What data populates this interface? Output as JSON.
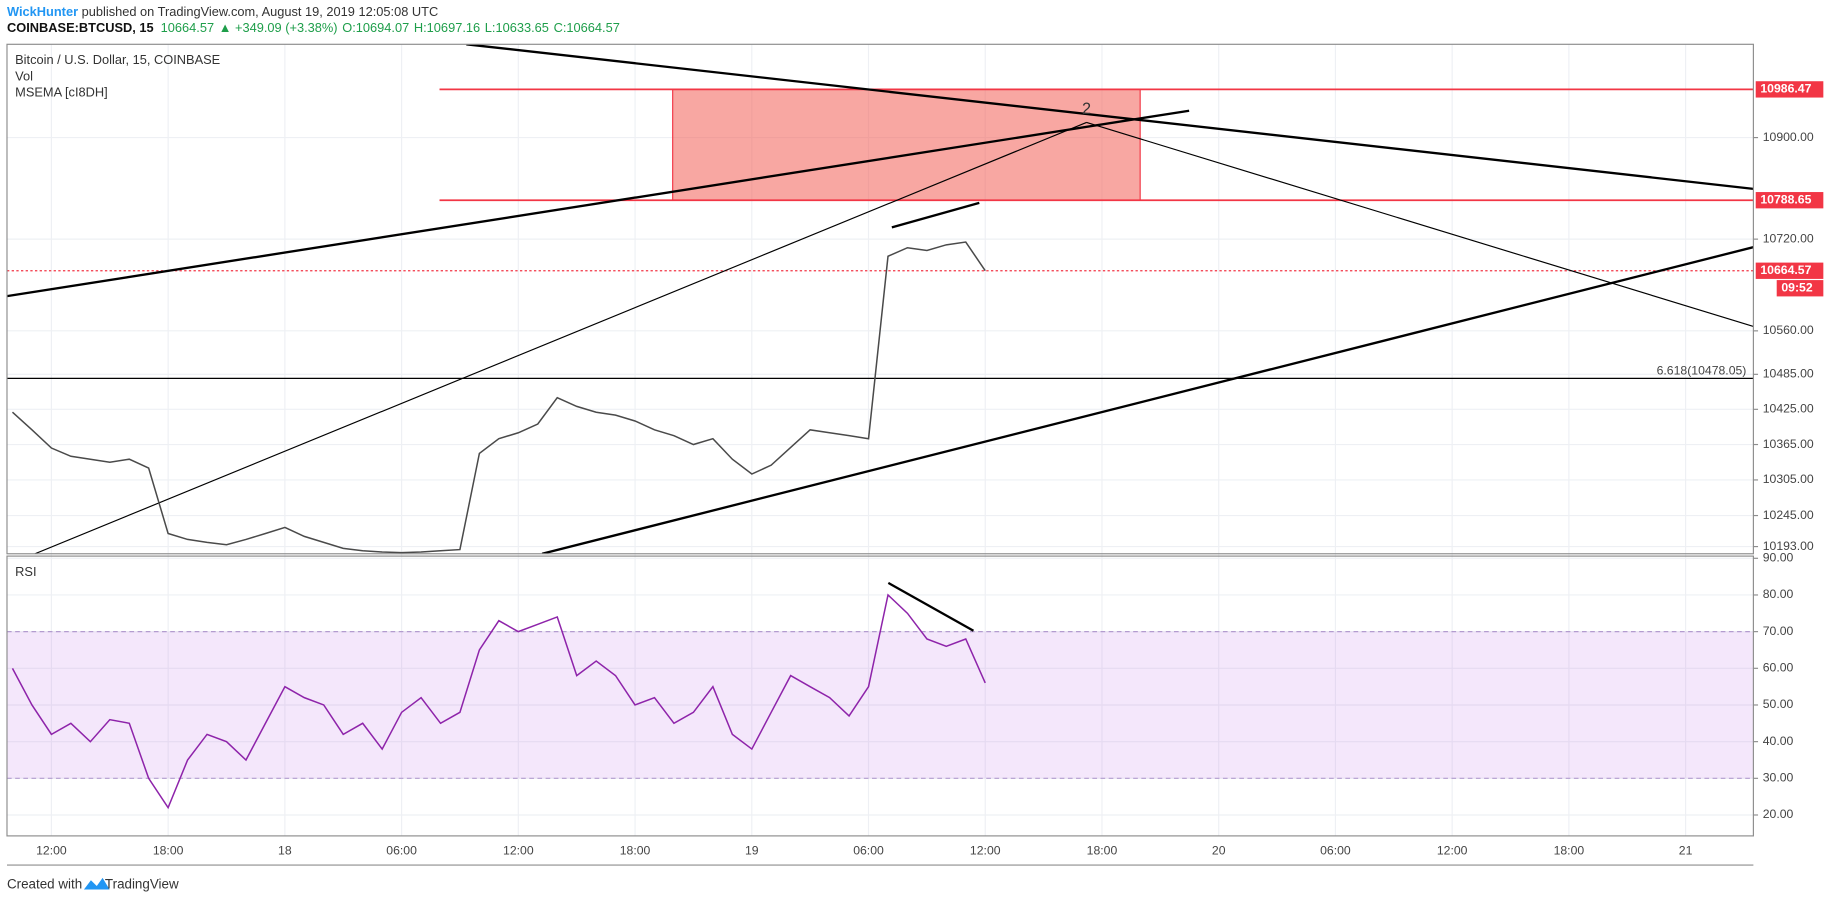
{
  "header": {
    "author": "WickHunter",
    "published": " published on TradingView.com, August 19, 2019 12:05:08 UTC",
    "symbol": "COINBASE:BTCUSD, 15",
    "last": "10664.57",
    "change": "▲ +349.09 (+3.38%)",
    "open": "O:10694.07",
    "high": "H:10697.16",
    "low": "L:10633.65",
    "close": "C:10664.57"
  },
  "chart_data": [
    {
      "type": "line",
      "title": "Bitcoin / U.S. Dollar, 15, COINBASE",
      "indicators": [
        "Vol",
        "MSEMA [cI8DH]"
      ],
      "log": true,
      "grid": true,
      "color": "#4a4a4a",
      "xlim": [
        "2019-08-17T09:43",
        "2019-08-21T03:29"
      ],
      "ylim": [
        10181,
        11068
      ],
      "yticks": [
        {
          "value": 10193,
          "label": "10193.00"
        },
        {
          "value": 10245,
          "label": "10245.00"
        },
        {
          "value": 10305,
          "label": "10305.00"
        },
        {
          "value": 10365,
          "label": "10365.00"
        },
        {
          "value": 10425,
          "label": "10425.00"
        },
        {
          "value": 10485,
          "label": "10485.00"
        },
        {
          "value": 10560,
          "label": "10560.00"
        },
        {
          "value": 10720,
          "label": "10720.00"
        },
        {
          "value": 10900,
          "label": "10900.00"
        }
      ],
      "x": [
        "2019-08-17T10:00",
        "2019-08-17T11:00",
        "2019-08-17T12:00",
        "2019-08-17T13:00",
        "2019-08-17T14:00",
        "2019-08-17T15:00",
        "2019-08-17T16:00",
        "2019-08-17T17:00",
        "2019-08-17T18:00",
        "2019-08-17T19:00",
        "2019-08-17T20:00",
        "2019-08-17T21:00",
        "2019-08-17T22:00",
        "2019-08-17T23:00",
        "2019-08-18T00:00",
        "2019-08-18T01:00",
        "2019-08-18T02:00",
        "2019-08-18T03:00",
        "2019-08-18T04:00",
        "2019-08-18T05:00",
        "2019-08-18T06:00",
        "2019-08-18T07:00",
        "2019-08-18T08:00",
        "2019-08-18T09:00",
        "2019-08-18T10:00",
        "2019-08-18T11:00",
        "2019-08-18T12:00",
        "2019-08-18T13:00",
        "2019-08-18T14:00",
        "2019-08-18T15:00",
        "2019-08-18T16:00",
        "2019-08-18T17:00",
        "2019-08-18T18:00",
        "2019-08-18T19:00",
        "2019-08-18T20:00",
        "2019-08-18T21:00",
        "2019-08-18T22:00",
        "2019-08-18T23:00",
        "2019-08-19T00:00",
        "2019-08-19T01:00",
        "2019-08-19T02:00",
        "2019-08-19T03:00",
        "2019-08-19T04:00",
        "2019-08-19T05:00",
        "2019-08-19T06:00",
        "2019-08-19T07:00",
        "2019-08-19T08:00",
        "2019-08-19T09:00",
        "2019-08-19T10:00",
        "2019-08-19T11:00",
        "2019-08-19T12:00"
      ],
      "values": [
        10420,
        10390,
        10359,
        10345,
        10340,
        10335,
        10340,
        10325,
        10215,
        10205,
        10200,
        10196,
        10205,
        10215,
        10225,
        10210,
        10200,
        10190,
        10186,
        10184,
        10183,
        10184,
        10186,
        10188,
        10350,
        10375,
        10385,
        10400,
        10445,
        10430,
        10420,
        10415,
        10405,
        10390,
        10380,
        10365,
        10375,
        10340,
        10315,
        10330,
        10360,
        10390,
        10385,
        10380,
        10375,
        10690,
        10705,
        10700,
        10710,
        10715,
        10664.57
      ],
      "levels": [
        {
          "value": 10986.47,
          "label": "10986.47"
        },
        {
          "value": 10788.65,
          "label": "10788.65"
        },
        {
          "value": 10664.57,
          "label": "10664.57",
          "dashed": true
        }
      ],
      "countdown": "09:52",
      "fib": {
        "value": 10478.05,
        "label": "6.618(10478.05)"
      },
      "annotation": "2"
    },
    {
      "type": "line",
      "title": "RSI",
      "grid": true,
      "color": "#8e24aa",
      "band": [
        30,
        70
      ],
      "xlim": [
        "2019-08-17T09:43",
        "2019-08-21T03:29"
      ],
      "ylim": [
        14.3,
        90.6
      ],
      "yticks": [
        {
          "value": 20,
          "label": "20.00"
        },
        {
          "value": 30,
          "label": "30.00"
        },
        {
          "value": 40,
          "label": "40.00"
        },
        {
          "value": 50,
          "label": "50.00"
        },
        {
          "value": 60,
          "label": "60.00"
        },
        {
          "value": 70,
          "label": "70.00"
        },
        {
          "value": 80,
          "label": "80.00"
        },
        {
          "value": 90,
          "label": "90.00"
        }
      ],
      "xticks": [
        {
          "value": "2019-08-17T12:00",
          "label": "12:00"
        },
        {
          "value": "2019-08-17T18:00",
          "label": "18:00"
        },
        {
          "value": "2019-08-18T00:00",
          "label": "18"
        },
        {
          "value": "2019-08-18T06:00",
          "label": "06:00"
        },
        {
          "value": "2019-08-18T12:00",
          "label": "12:00"
        },
        {
          "value": "2019-08-18T18:00",
          "label": "18:00"
        },
        {
          "value": "2019-08-19T00:00",
          "label": "19"
        },
        {
          "value": "2019-08-19T06:00",
          "label": "06:00"
        },
        {
          "value": "2019-08-19T12:00",
          "label": "12:00"
        },
        {
          "value": "2019-08-19T18:00",
          "label": "18:00"
        },
        {
          "value": "2019-08-20T00:00",
          "label": "20"
        },
        {
          "value": "2019-08-20T06:00",
          "label": "06:00"
        },
        {
          "value": "2019-08-20T12:00",
          "label": "12:00"
        },
        {
          "value": "2019-08-20T18:00",
          "label": "18:00"
        },
        {
          "value": "2019-08-21T00:00",
          "label": "21"
        }
      ],
      "x": [
        "2019-08-17T10:00",
        "2019-08-17T11:00",
        "2019-08-17T12:00",
        "2019-08-17T13:00",
        "2019-08-17T14:00",
        "2019-08-17T15:00",
        "2019-08-17T16:00",
        "2019-08-17T17:00",
        "2019-08-17T18:00",
        "2019-08-17T19:00",
        "2019-08-17T20:00",
        "2019-08-17T21:00",
        "2019-08-17T22:00",
        "2019-08-17T23:00",
        "2019-08-18T00:00",
        "2019-08-18T01:00",
        "2019-08-18T02:00",
        "2019-08-18T03:00",
        "2019-08-18T04:00",
        "2019-08-18T05:00",
        "2019-08-18T06:00",
        "2019-08-18T07:00",
        "2019-08-18T08:00",
        "2019-08-18T09:00",
        "2019-08-18T10:00",
        "2019-08-18T11:00",
        "2019-08-18T12:00",
        "2019-08-18T13:00",
        "2019-08-18T14:00",
        "2019-08-18T15:00",
        "2019-08-18T16:00",
        "2019-08-18T17:00",
        "2019-08-18T18:00",
        "2019-08-18T19:00",
        "2019-08-18T20:00",
        "2019-08-18T21:00",
        "2019-08-18T22:00",
        "2019-08-18T23:00",
        "2019-08-19T00:00",
        "2019-08-19T01:00",
        "2019-08-19T02:00",
        "2019-08-19T03:00",
        "2019-08-19T04:00",
        "2019-08-19T05:00",
        "2019-08-19T06:00",
        "2019-08-19T07:00",
        "2019-08-19T08:00",
        "2019-08-19T09:00",
        "2019-08-19T10:00",
        "2019-08-19T11:00",
        "2019-08-19T12:00"
      ],
      "values": [
        60,
        50,
        42,
        45,
        40,
        46,
        45,
        30,
        22,
        35,
        42,
        40,
        35,
        45,
        55,
        52,
        50,
        42,
        45,
        38,
        48,
        52,
        45,
        48,
        65,
        73,
        70,
        72,
        74,
        58,
        62,
        58,
        50,
        52,
        45,
        48,
        55,
        42,
        38,
        48,
        58,
        55,
        52,
        47,
        55,
        80,
        75,
        68,
        66,
        68,
        56
      ]
    }
  ],
  "footer": {
    "created": "Created with",
    "brand": "TradingView"
  }
}
